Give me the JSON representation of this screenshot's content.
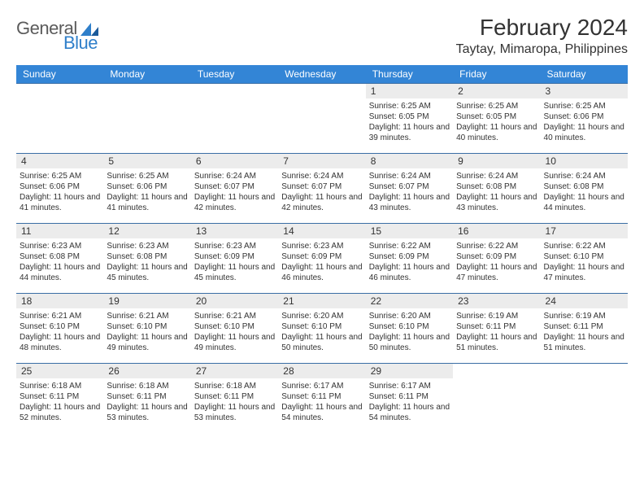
{
  "logo": {
    "text1": "General",
    "text2": "Blue"
  },
  "title": "February 2024",
  "location": "Taytay, Mimaropa, Philippines",
  "colors": {
    "header_bg": "#3385d6",
    "header_text": "#ffffff",
    "row_border": "#3a6ea5",
    "daynum_bg": "#ececec",
    "text": "#333333",
    "logo_gray": "#5b5b5b",
    "logo_blue": "#2f7fca"
  },
  "day_headers": [
    "Sunday",
    "Monday",
    "Tuesday",
    "Wednesday",
    "Thursday",
    "Friday",
    "Saturday"
  ],
  "first_weekday_index": 4,
  "days": [
    {
      "n": 1,
      "sunrise": "6:25 AM",
      "sunset": "6:05 PM",
      "daylight": "11 hours and 39 minutes."
    },
    {
      "n": 2,
      "sunrise": "6:25 AM",
      "sunset": "6:05 PM",
      "daylight": "11 hours and 40 minutes."
    },
    {
      "n": 3,
      "sunrise": "6:25 AM",
      "sunset": "6:06 PM",
      "daylight": "11 hours and 40 minutes."
    },
    {
      "n": 4,
      "sunrise": "6:25 AM",
      "sunset": "6:06 PM",
      "daylight": "11 hours and 41 minutes."
    },
    {
      "n": 5,
      "sunrise": "6:25 AM",
      "sunset": "6:06 PM",
      "daylight": "11 hours and 41 minutes."
    },
    {
      "n": 6,
      "sunrise": "6:24 AM",
      "sunset": "6:07 PM",
      "daylight": "11 hours and 42 minutes."
    },
    {
      "n": 7,
      "sunrise": "6:24 AM",
      "sunset": "6:07 PM",
      "daylight": "11 hours and 42 minutes."
    },
    {
      "n": 8,
      "sunrise": "6:24 AM",
      "sunset": "6:07 PM",
      "daylight": "11 hours and 43 minutes."
    },
    {
      "n": 9,
      "sunrise": "6:24 AM",
      "sunset": "6:08 PM",
      "daylight": "11 hours and 43 minutes."
    },
    {
      "n": 10,
      "sunrise": "6:24 AM",
      "sunset": "6:08 PM",
      "daylight": "11 hours and 44 minutes."
    },
    {
      "n": 11,
      "sunrise": "6:23 AM",
      "sunset": "6:08 PM",
      "daylight": "11 hours and 44 minutes."
    },
    {
      "n": 12,
      "sunrise": "6:23 AM",
      "sunset": "6:08 PM",
      "daylight": "11 hours and 45 minutes."
    },
    {
      "n": 13,
      "sunrise": "6:23 AM",
      "sunset": "6:09 PM",
      "daylight": "11 hours and 45 minutes."
    },
    {
      "n": 14,
      "sunrise": "6:23 AM",
      "sunset": "6:09 PM",
      "daylight": "11 hours and 46 minutes."
    },
    {
      "n": 15,
      "sunrise": "6:22 AM",
      "sunset": "6:09 PM",
      "daylight": "11 hours and 46 minutes."
    },
    {
      "n": 16,
      "sunrise": "6:22 AM",
      "sunset": "6:09 PM",
      "daylight": "11 hours and 47 minutes."
    },
    {
      "n": 17,
      "sunrise": "6:22 AM",
      "sunset": "6:10 PM",
      "daylight": "11 hours and 47 minutes."
    },
    {
      "n": 18,
      "sunrise": "6:21 AM",
      "sunset": "6:10 PM",
      "daylight": "11 hours and 48 minutes."
    },
    {
      "n": 19,
      "sunrise": "6:21 AM",
      "sunset": "6:10 PM",
      "daylight": "11 hours and 49 minutes."
    },
    {
      "n": 20,
      "sunrise": "6:21 AM",
      "sunset": "6:10 PM",
      "daylight": "11 hours and 49 minutes."
    },
    {
      "n": 21,
      "sunrise": "6:20 AM",
      "sunset": "6:10 PM",
      "daylight": "11 hours and 50 minutes."
    },
    {
      "n": 22,
      "sunrise": "6:20 AM",
      "sunset": "6:10 PM",
      "daylight": "11 hours and 50 minutes."
    },
    {
      "n": 23,
      "sunrise": "6:19 AM",
      "sunset": "6:11 PM",
      "daylight": "11 hours and 51 minutes."
    },
    {
      "n": 24,
      "sunrise": "6:19 AM",
      "sunset": "6:11 PM",
      "daylight": "11 hours and 51 minutes."
    },
    {
      "n": 25,
      "sunrise": "6:18 AM",
      "sunset": "6:11 PM",
      "daylight": "11 hours and 52 minutes."
    },
    {
      "n": 26,
      "sunrise": "6:18 AM",
      "sunset": "6:11 PM",
      "daylight": "11 hours and 53 minutes."
    },
    {
      "n": 27,
      "sunrise": "6:18 AM",
      "sunset": "6:11 PM",
      "daylight": "11 hours and 53 minutes."
    },
    {
      "n": 28,
      "sunrise": "6:17 AM",
      "sunset": "6:11 PM",
      "daylight": "11 hours and 54 minutes."
    },
    {
      "n": 29,
      "sunrise": "6:17 AM",
      "sunset": "6:11 PM",
      "daylight": "11 hours and 54 minutes."
    }
  ],
  "labels": {
    "sunrise": "Sunrise:",
    "sunset": "Sunset:",
    "daylight": "Daylight:"
  }
}
